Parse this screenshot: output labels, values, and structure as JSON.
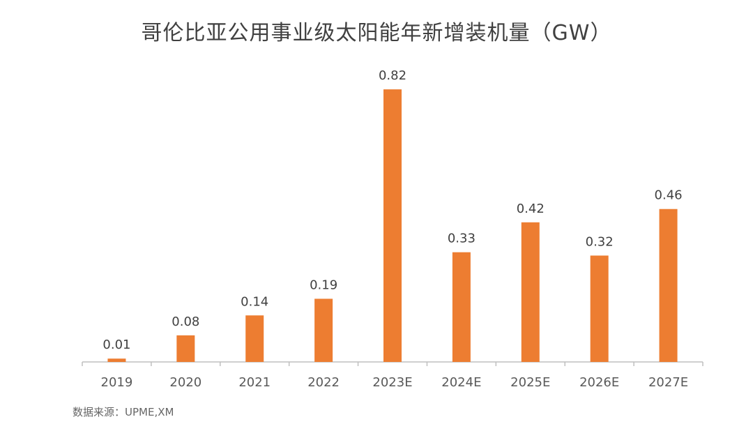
{
  "title": "哥伦比亚公用事业级太阳能年新增装机量（GW）",
  "source": "数据来源：UPME,XM",
  "colors": {
    "bar": "#ED7D31",
    "axis": "#BFBFBF",
    "label": "#404040",
    "tick": "#595959",
    "background": "#FFFFFF"
  },
  "chart_data": {
    "type": "bar",
    "title": "哥伦比亚公用事业级太阳能年新增装机量（GW）",
    "xlabel": "",
    "ylabel": "",
    "categories": [
      "2019",
      "2020",
      "2021",
      "2022",
      "2023E",
      "2024E",
      "2025E",
      "2026E",
      "2027E"
    ],
    "values": [
      0.01,
      0.08,
      0.14,
      0.19,
      0.82,
      0.33,
      0.42,
      0.32,
      0.46
    ],
    "value_labels": [
      "0.01",
      "0.08",
      "0.14",
      "0.19",
      "0.82",
      "0.33",
      "0.42",
      "0.32",
      "0.46"
    ],
    "ylim": [
      0,
      0.9
    ],
    "grid": false,
    "legend": "none"
  }
}
